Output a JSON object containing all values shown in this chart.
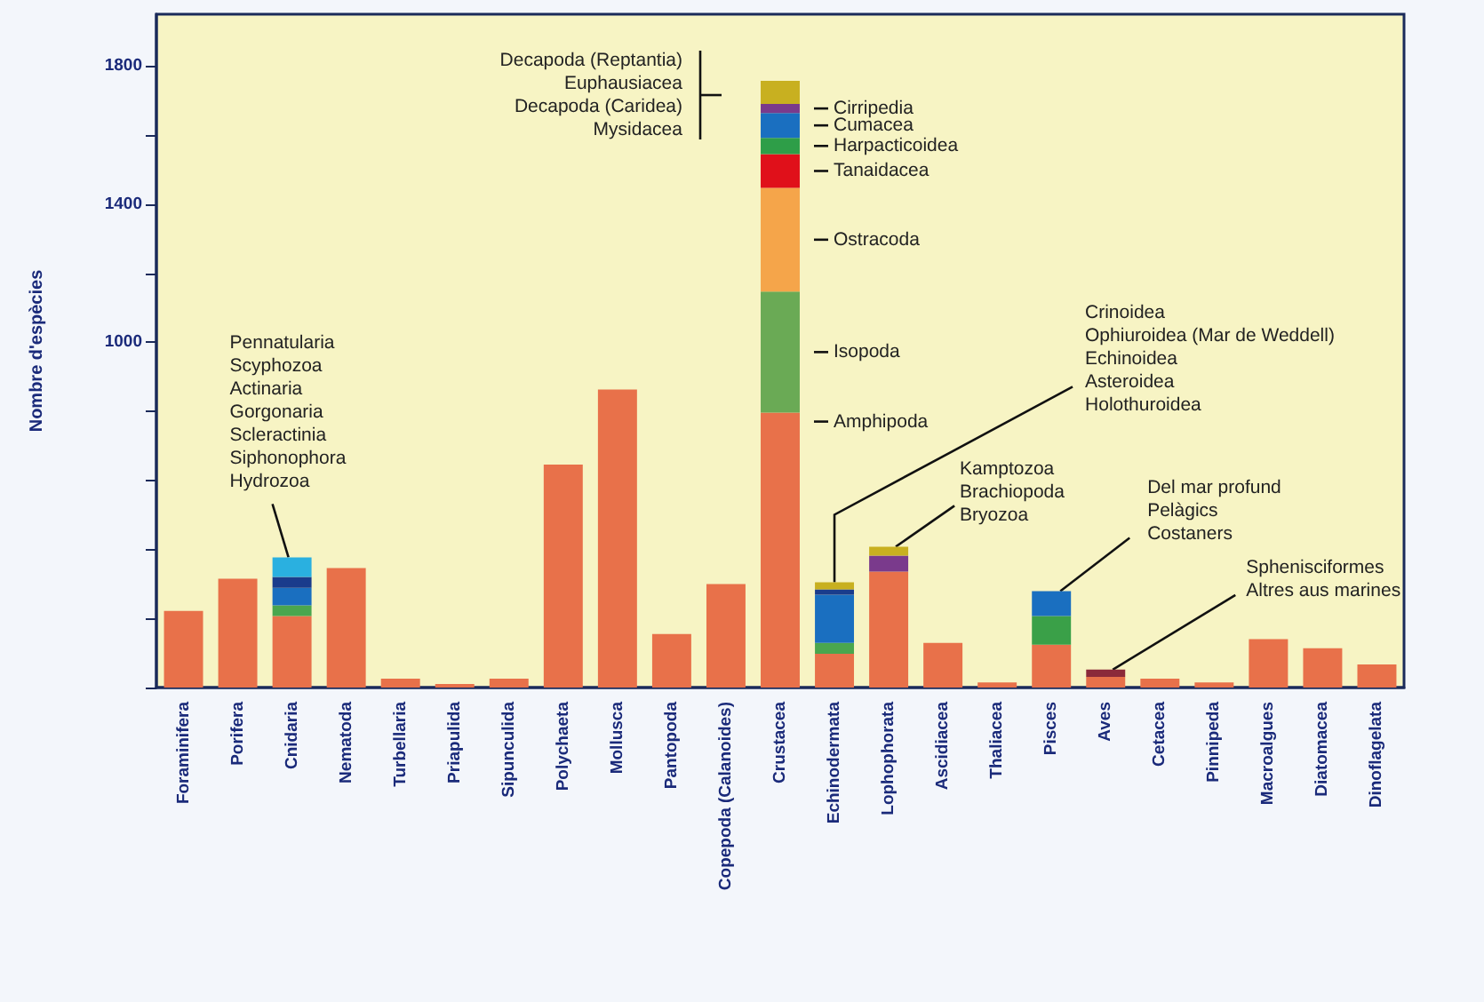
{
  "chart_data": {
    "type": "bar",
    "stacked": true,
    "ylabel": "Nombre d'espècies",
    "categories": [
      "Foraminifera",
      "Porifera",
      "Cnidaria",
      "Nematoda",
      "Turbellaria",
      "Priapulida",
      "Sipunculida",
      "Polychaeta",
      "Mollusca",
      "Pantopoda",
      "Copepoda (Calanoides)",
      "Crustacea",
      "Echinodermata",
      "Lophophorata",
      "Ascidiacea",
      "Thaliacea",
      "Pisces",
      "Aves",
      "Cetacea",
      "Pinnipeda",
      "Macroalgues",
      "Diatomacea",
      "Dinoflagelata"
    ],
    "series": [
      {
        "values": [
          222,
          315,
          207,
          346,
          26,
          10,
          26,
          646,
          863,
          155,
          300,
          796,
          98,
          336,
          129,
          15,
          124,
          31,
          26,
          15,
          140,
          114,
          67
        ],
        "color": "#e8714a"
      },
      {
        "values": [
          null,
          null,
          31,
          null,
          null,
          null,
          null,
          null,
          null,
          null,
          null,
          351,
          31,
          46,
          null,
          null,
          83,
          21,
          null,
          null,
          null,
          null,
          null
        ],
        "colors": [
          null,
          null,
          "#4aa64e",
          null,
          null,
          null,
          null,
          null,
          null,
          null,
          null,
          "#6aaa55",
          "#4aa64e",
          "#7a3a8c",
          null,
          null,
          "#3aa048",
          "#8b2a3a",
          null,
          null,
          null,
          null,
          null
        ]
      },
      {
        "values": [
          null,
          null,
          51,
          null,
          null,
          null,
          null,
          null,
          null,
          null,
          null,
          300,
          140,
          26,
          null,
          null,
          72,
          null,
          null,
          null,
          null,
          null,
          null
        ],
        "colors": [
          null,
          null,
          "#1a6fc0",
          null,
          null,
          null,
          null,
          null,
          null,
          null,
          null,
          "#f5a54a",
          "#1a6fc0",
          "#c8b020",
          null,
          null,
          "#1a6fc0",
          null,
          null,
          null,
          null,
          null,
          null
        ]
      },
      {
        "values": [
          null,
          null,
          31,
          null,
          null,
          null,
          null,
          null,
          null,
          null,
          null,
          98,
          15,
          null,
          null,
          null,
          null,
          null,
          null,
          null,
          null,
          null,
          null
        ],
        "colors": [
          null,
          null,
          "#1a3c8c",
          null,
          null,
          null,
          null,
          null,
          null,
          null,
          null,
          "#e0101a",
          "#1a3c8c",
          null,
          null,
          null,
          null,
          null,
          null,
          null,
          null,
          null,
          null
        ]
      },
      {
        "values": [
          null,
          null,
          57,
          null,
          null,
          null,
          null,
          null,
          null,
          null,
          null,
          47,
          21,
          null,
          null,
          null,
          null,
          null,
          null,
          null,
          null,
          null,
          null
        ],
        "colors": [
          null,
          null,
          "#2ab0e0",
          null,
          null,
          null,
          null,
          null,
          null,
          null,
          null,
          "#2e9e48",
          "#c8b020",
          null,
          null,
          null,
          null,
          null,
          null,
          null,
          null,
          null,
          null
        ]
      },
      {
        "values": [
          null,
          null,
          null,
          null,
          null,
          null,
          null,
          null,
          null,
          null,
          null,
          72,
          null,
          null,
          null,
          null,
          null,
          null,
          null,
          null,
          null,
          null,
          null
        ],
        "color": "#1a6fc0"
      },
      {
        "values": [
          null,
          null,
          null,
          null,
          null,
          null,
          null,
          null,
          null,
          null,
          null,
          26,
          null,
          null,
          null,
          null,
          null,
          null,
          null,
          null,
          null,
          null,
          null
        ],
        "color": "#7a3a8c"
      },
      {
        "values": [
          null,
          null,
          null,
          null,
          null,
          null,
          null,
          null,
          null,
          null,
          null,
          67,
          null,
          null,
          null,
          null,
          null,
          null,
          null,
          null,
          null,
          null,
          null
        ],
        "color": "#c8b020"
      }
    ],
    "ylim": [
      0,
      1950
    ],
    "yticks": [
      {
        "value": 0,
        "label": null
      },
      {
        "value": 200,
        "label": null
      },
      {
        "value": 400,
        "label": null
      },
      {
        "value": 600,
        "label": null
      },
      {
        "value": 800,
        "label": null
      },
      1000,
      {
        "value": 1200,
        "label": null
      },
      1400,
      {
        "value": 1600,
        "label": null
      },
      1800
    ],
    "annotations": [
      "Decapoda (Reptantia)\nEuphausiacea\nDecapoda (Caridea)\nMysidacea",
      "Cirripedia",
      "Cumacea",
      "Harpacticoidea",
      "Tanaidacea",
      "Ostracoda",
      "Isopoda",
      "Amphipoda",
      {
        "text": "Pennatularia\nScyphozoa\nActinaria\nGorgonaria\nScleractinia\nSiphonophora\nHydrozoa",
        "x": "Cnidaria",
        "y": 377
      },
      {
        "text": "Crinoidea\nOphiuroidea (Mar de Weddell)\nEchinoidea\nAsteroidea\nHolothuroidea",
        "x": "Echinodermata",
        "y": 305
      },
      {
        "text": "Kamptozoa\nBrachiopoda\nBryozoa",
        "x": "Lophophorata",
        "y": 408
      },
      {
        "text": "Del mar profund\nPelàgics\nCostaners",
        "x": "Pisces",
        "y": 279
      },
      {
        "text": "Sphenisciformes\nAltres aus marines",
        "x": "Aves",
        "y": 52
      }
    ],
    "grid": false
  }
}
